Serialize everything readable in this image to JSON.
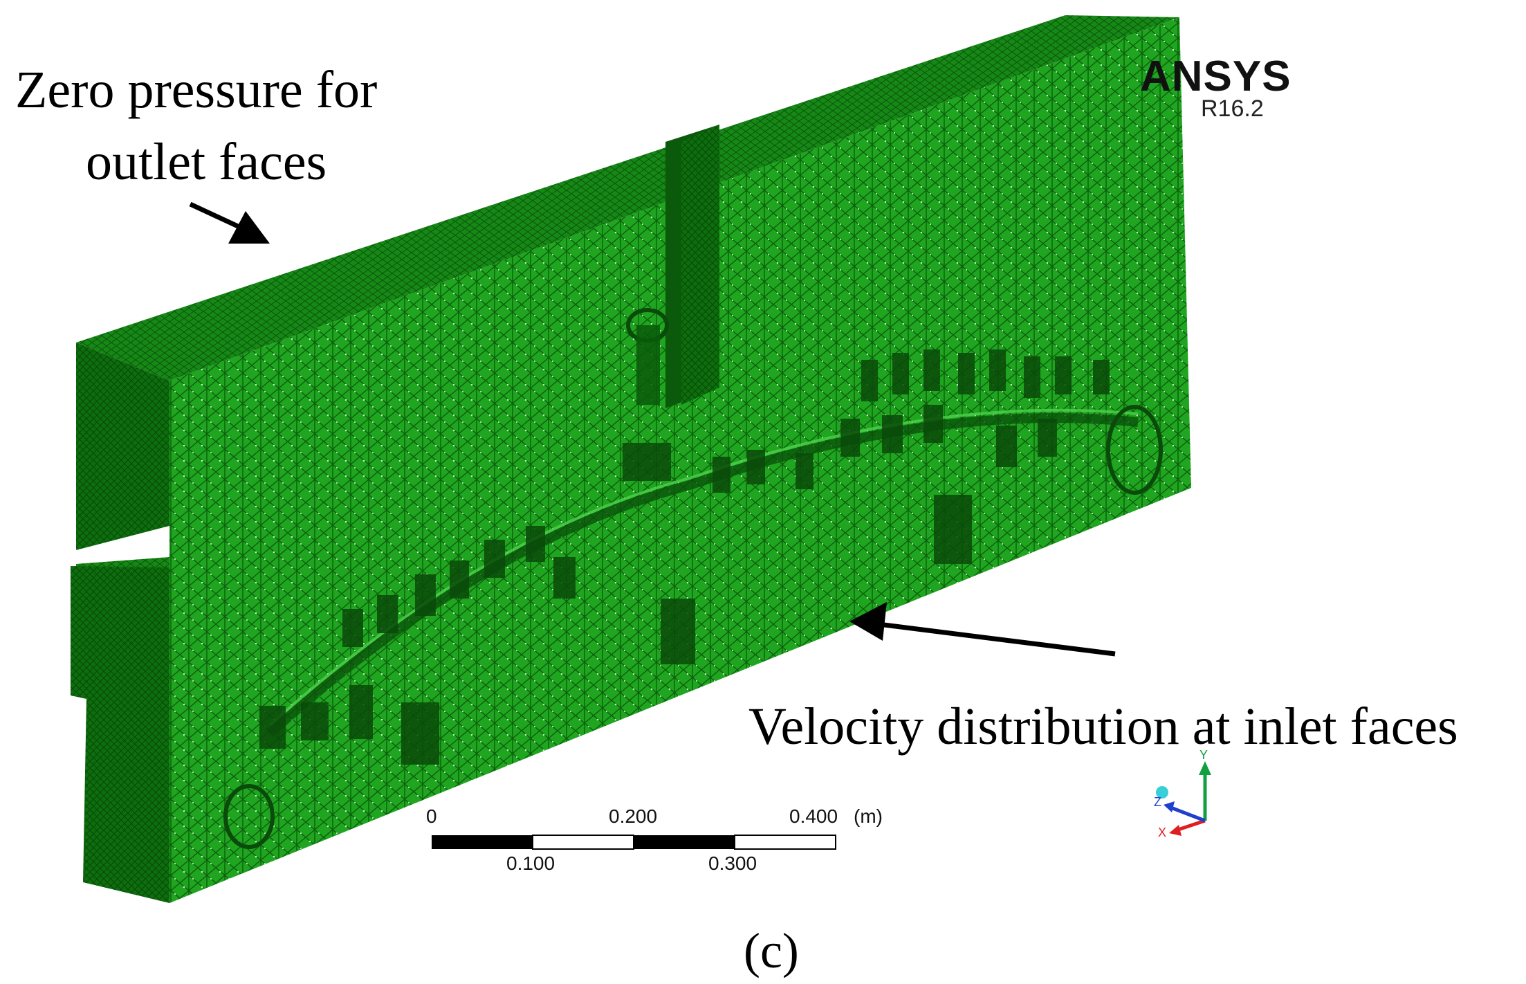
{
  "annotations": {
    "outlet": {
      "line1": "Zero pressure for",
      "line2": "outlet faces"
    },
    "inlet": "Velocity distribution at inlet faces"
  },
  "brand": {
    "name": "ANSYS",
    "version": "R16.2"
  },
  "scale_bar": {
    "ticks_top": [
      "0",
      "0.200",
      "0.400"
    ],
    "unit": "(m)",
    "ticks_bottom": [
      "0.100",
      "0.300"
    ]
  },
  "triad": {
    "x": "X",
    "y": "Y",
    "z": "Z"
  },
  "panel_label": "(c)",
  "colors": {
    "mesh_front": "#1fa51f",
    "mesh_top": "#178c17",
    "mesh_side": "#0c6a0c",
    "mesh_dark": "#0a4f0a",
    "axis_x": "#e02020",
    "axis_y": "#10a040",
    "axis_z": "#1f3fd0"
  }
}
